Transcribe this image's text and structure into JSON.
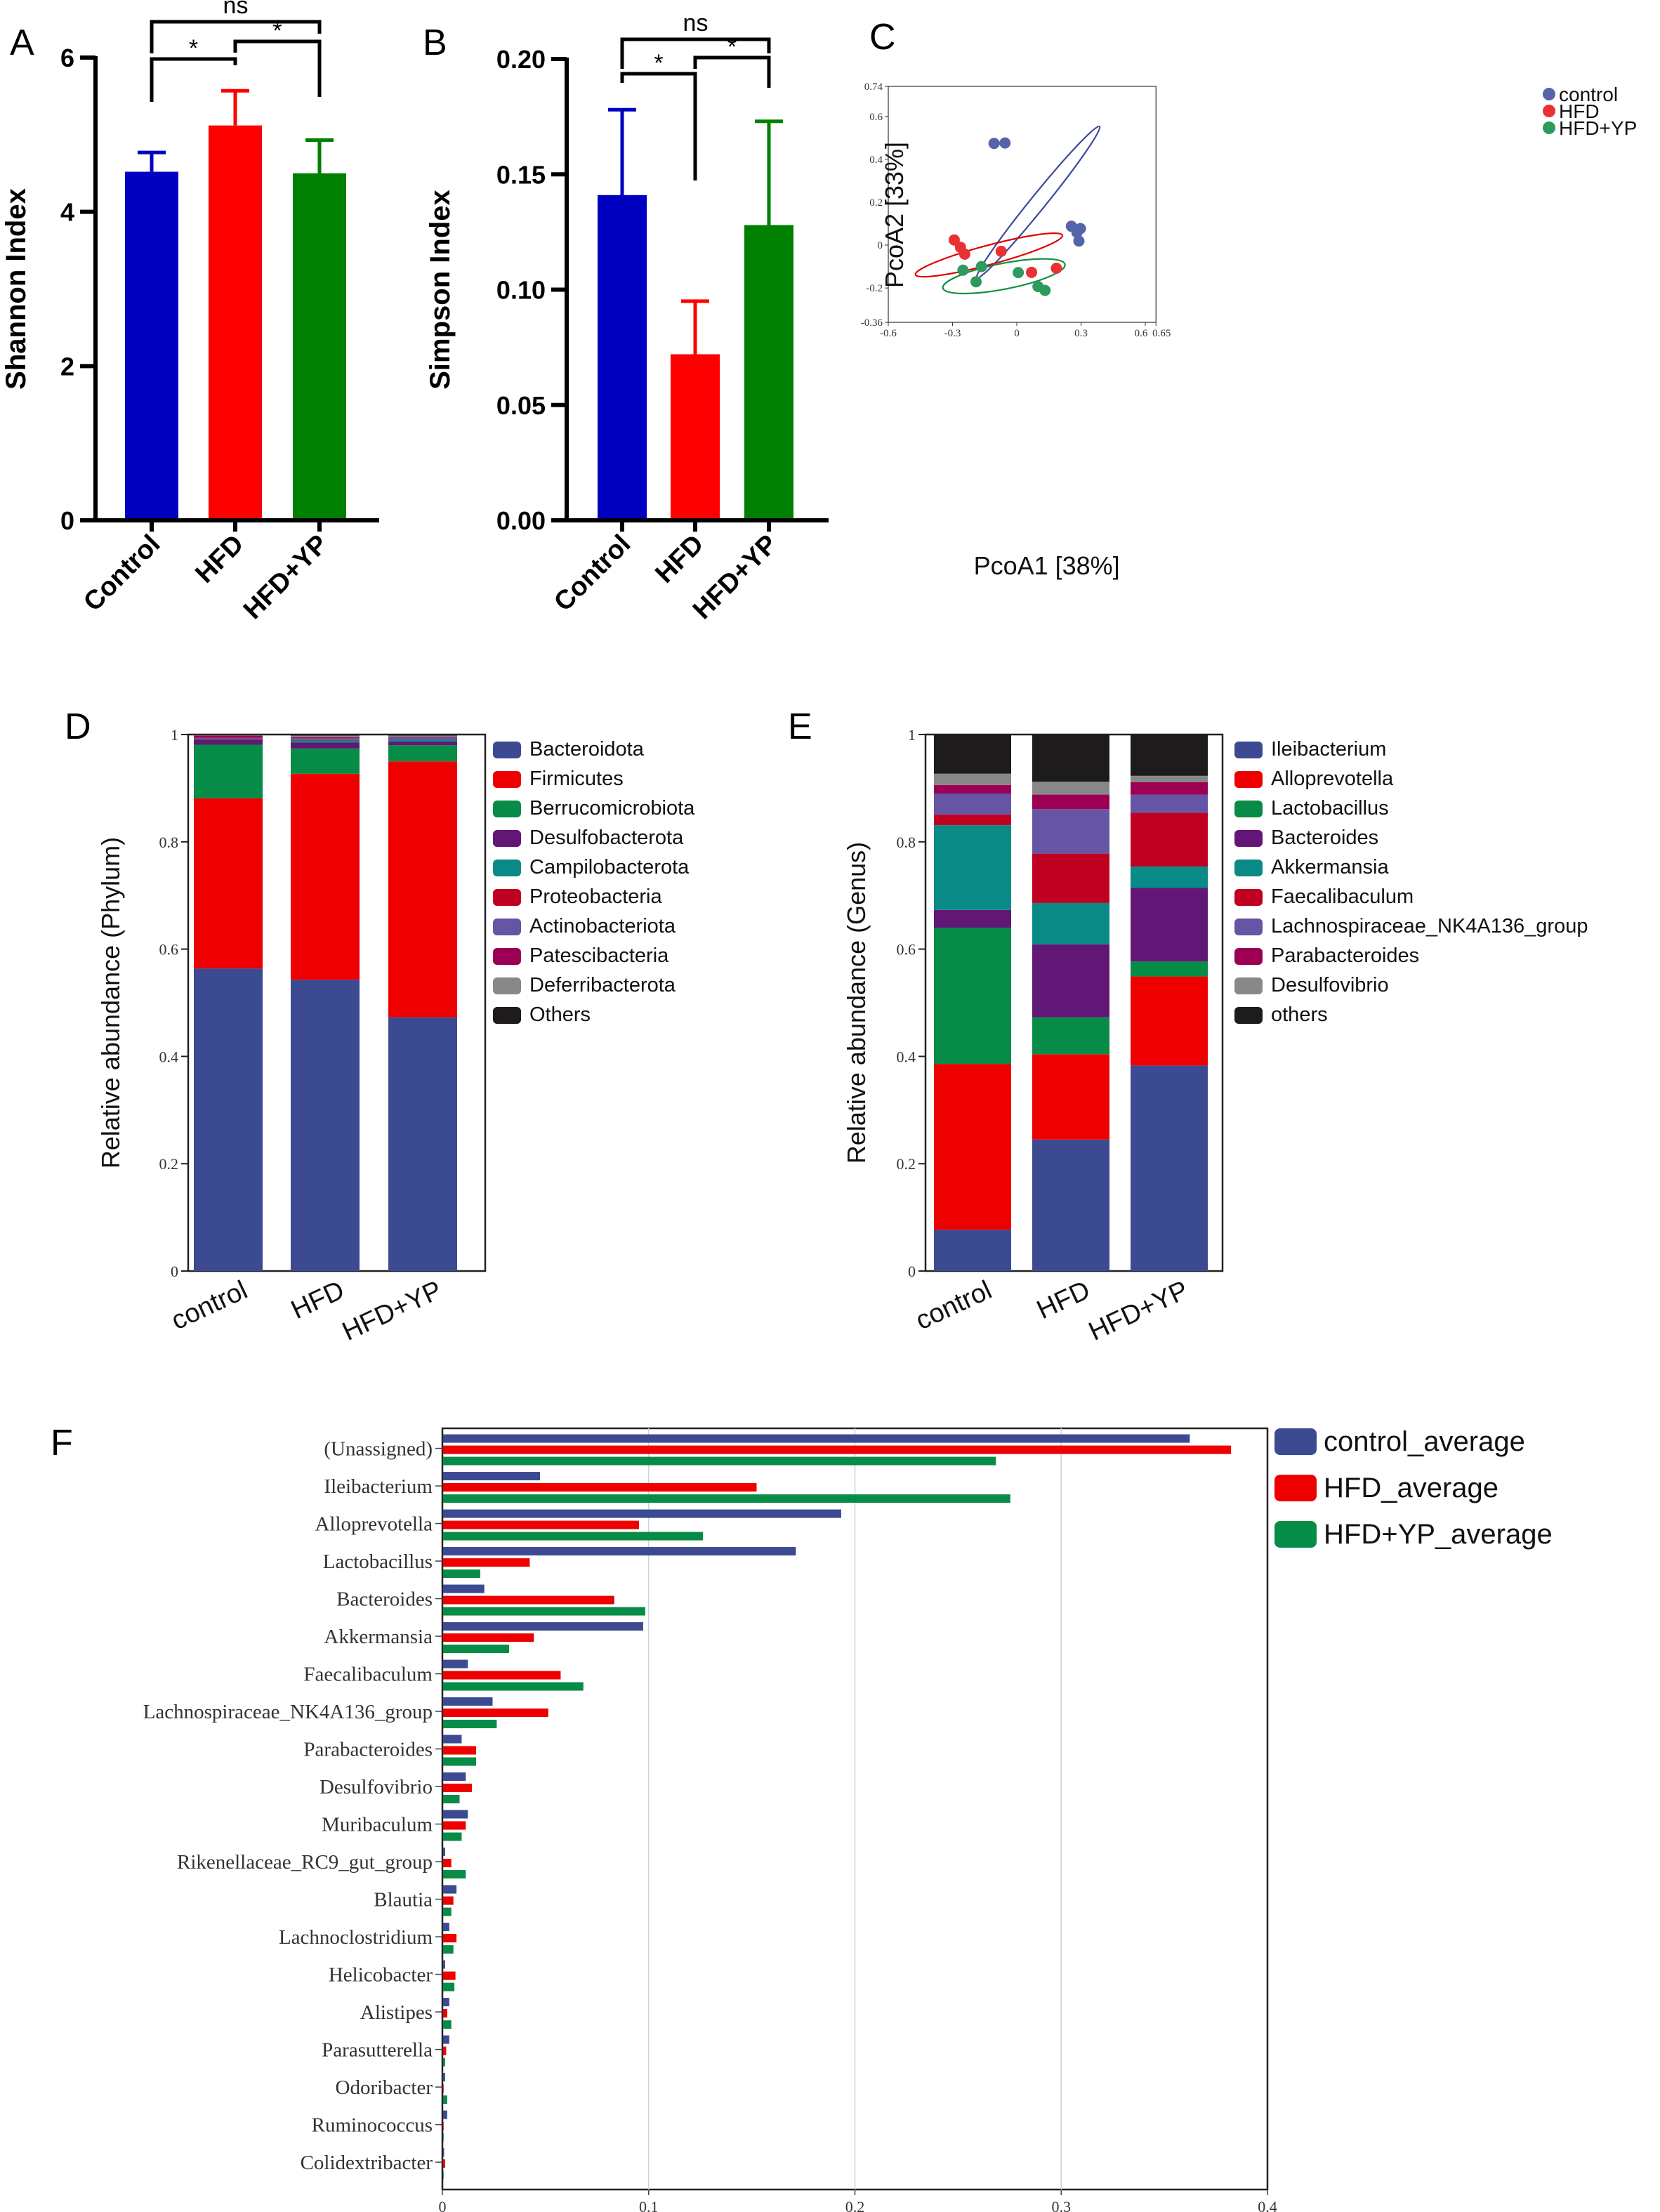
{
  "panels": {
    "A": {
      "letter": "A"
    },
    "B": {
      "letter": "B"
    },
    "C": {
      "letter": "C"
    },
    "D": {
      "letter": "D"
    },
    "E": {
      "letter": "E"
    },
    "F": {
      "letter": "F"
    }
  },
  "colors": {
    "control": "#0000c0",
    "hfd": "#ff0000",
    "hfd_yp": "#008000",
    "pcoa_control": "#5563a8",
    "pcoa_hfd": "#e83232",
    "pcoa_hfd_yp": "#2e9a5e",
    "ellipse_control": "#3b4a9a",
    "ellipse_hfd": "#e00000",
    "ellipse_hfd_yp": "#119040",
    "f_control": "#3c4a92",
    "f_hfd": "#ee0000",
    "f_hfd_yp": "#078c47"
  },
  "chart_data": [
    {
      "id": "A",
      "type": "bar",
      "title": "",
      "xlabel": "",
      "ylabel": "Shannon Index",
      "ylim": [
        0,
        6
      ],
      "yticks": [
        "0",
        "2",
        "4",
        "6"
      ],
      "ytick_values": [
        0,
        2,
        4,
        6
      ],
      "categories": [
        "Control",
        "HFD",
        "HFD+YP"
      ],
      "values": [
        4.52,
        5.12,
        4.5
      ],
      "error_upper": [
        4.77,
        5.57,
        4.93
      ],
      "significance": [
        {
          "from": 0,
          "to": 1,
          "label": "*"
        },
        {
          "from": 1,
          "to": 2,
          "label": "*"
        },
        {
          "from": 0,
          "to": 2,
          "label": "ns"
        }
      ]
    },
    {
      "id": "B",
      "type": "bar",
      "title": "",
      "xlabel": "",
      "ylabel": "Simpson Index",
      "ylim": [
        0,
        0.2
      ],
      "yticks": [
        "0.00",
        "0.05",
        "0.10",
        "0.15",
        "0.20"
      ],
      "ytick_values": [
        0,
        0.05,
        0.1,
        0.15,
        0.2
      ],
      "categories": [
        "Control",
        "HFD",
        "HFD+YP"
      ],
      "values": [
        0.141,
        0.072,
        0.128
      ],
      "error_upper": [
        0.178,
        0.095,
        0.173
      ],
      "significance": [
        {
          "from": 0,
          "to": 1,
          "label": "*"
        },
        {
          "from": 1,
          "to": 2,
          "label": "*"
        },
        {
          "from": 0,
          "to": 2,
          "label": "ns"
        }
      ]
    },
    {
      "id": "C",
      "type": "scatter",
      "title": "",
      "xlabel": "PcoA1 [38%]",
      "ylabel": "PcoA2 [33%]",
      "xlim": [
        -0.6,
        0.65
      ],
      "ylim": [
        -0.36,
        0.74
      ],
      "xticks": [
        "-0.6",
        "-0.3",
        "0",
        "0.3",
        "0.6",
        "0.65"
      ],
      "xtick_values": [
        -0.6,
        -0.3,
        0,
        0.3,
        0.6,
        0.65
      ],
      "yticks": [
        "-0.36",
        "-0.2",
        "0",
        "0.2",
        "0.4",
        "0.6",
        "0.74"
      ],
      "ytick_values": [
        -0.36,
        -0.2,
        0,
        0.2,
        0.4,
        0.6,
        0.74
      ],
      "legend_position": "top-right",
      "series": [
        {
          "name": "control",
          "points": [
            [
              -0.106,
              0.474
            ],
            [
              -0.055,
              0.476
            ],
            [
              0.255,
              0.088
            ],
            [
              0.281,
              0.059
            ],
            [
              0.297,
              0.077
            ],
            [
              0.29,
              0.019
            ]
          ]
        },
        {
          "name": "HFD",
          "points": [
            [
              -0.292,
              0.024
            ],
            [
              -0.263,
              -0.01
            ],
            [
              -0.243,
              -0.042
            ],
            [
              -0.073,
              -0.029
            ],
            [
              0.069,
              -0.127
            ],
            [
              0.185,
              -0.108
            ]
          ]
        },
        {
          "name": "HFD+YP",
          "points": [
            [
              -0.251,
              -0.117
            ],
            [
              -0.165,
              -0.1
            ],
            [
              -0.19,
              -0.171
            ],
            [
              0.007,
              -0.128
            ],
            [
              0.099,
              -0.193
            ],
            [
              0.132,
              -0.211
            ]
          ]
        }
      ],
      "ellipses": [
        {
          "name": "control",
          "cx": 0.1,
          "cy": 0.2,
          "rx": 0.455,
          "ry": 0.035,
          "angle_deg": -51
        },
        {
          "name": "HFD",
          "cx": -0.13,
          "cy": -0.046,
          "rx": 0.355,
          "ry": 0.045,
          "angle_deg": -15
        },
        {
          "name": "HFD+YP",
          "cx": -0.06,
          "cy": -0.145,
          "rx": 0.29,
          "ry": 0.06,
          "angle_deg": -11
        }
      ]
    },
    {
      "id": "D",
      "type": "bar",
      "stacked": true,
      "title": "",
      "xlabel": "",
      "ylabel": "Relative abundance (Phylum)",
      "ylim": [
        0,
        1
      ],
      "yticks": [
        "0",
        "0.2",
        "0.4",
        "0.6",
        "0.8",
        "1"
      ],
      "ytick_values": [
        0,
        0.2,
        0.4,
        0.6,
        0.8,
        1
      ],
      "categories": [
        "control",
        "HFD",
        "HFD+YP"
      ],
      "legend_position": "right",
      "series": [
        {
          "name": "Bacteroidota",
          "color": "#3c4a92",
          "values": [
            0.564,
            0.543,
            0.473
          ]
        },
        {
          "name": "Firmicutes",
          "color": "#ee0000",
          "values": [
            0.317,
            0.384,
            0.477
          ]
        },
        {
          "name": "Berrucomicrobiota",
          "color": "#078c47",
          "values": [
            0.1,
            0.047,
            0.03
          ]
        },
        {
          "name": "Desulfobacterota",
          "color": "#621776",
          "values": [
            0.01,
            0.011,
            0.007
          ]
        },
        {
          "name": "Campilobacterota",
          "color": "#0a8a86",
          "values": [
            0.001,
            0.004,
            0.004
          ]
        },
        {
          "name": "Proteobacteria",
          "color": "#c00020",
          "values": [
            0.001,
            0.001,
            0.001
          ]
        },
        {
          "name": "Actinobacteriota",
          "color": "#6655a5",
          "values": [
            0.001,
            0.003,
            0.003
          ]
        },
        {
          "name": "Patescibacteria",
          "color": "#9c0055",
          "values": [
            0.004,
            0.002,
            0.001
          ]
        },
        {
          "name": "Deferribacterota",
          "color": "#888888",
          "values": [
            0.001,
            0.003,
            0.002
          ]
        },
        {
          "name": "Others",
          "color": "#1d1b1c",
          "values": [
            0.001,
            0.002,
            0.002
          ]
        }
      ]
    },
    {
      "id": "E",
      "type": "bar",
      "stacked": true,
      "title": "",
      "xlabel": "",
      "ylabel": "Relative abundance (Genus)",
      "ylim": [
        0,
        1
      ],
      "yticks": [
        "0",
        "0.2",
        "0.4",
        "0.6",
        "0.8",
        "1"
      ],
      "ytick_values": [
        0,
        0.2,
        0.4,
        0.6,
        0.8,
        1
      ],
      "categories": [
        "control",
        "HFD",
        "HFD+YP"
      ],
      "legend_position": "right",
      "series": [
        {
          "name": "Ileibacterium",
          "color": "#3c4a92",
          "values": [
            0.077,
            0.245,
            0.383
          ]
        },
        {
          "name": "Alloprevotella",
          "color": "#ee0000",
          "values": [
            0.309,
            0.159,
            0.166
          ]
        },
        {
          "name": "Lactobacillus",
          "color": "#078c47",
          "values": [
            0.254,
            0.069,
            0.028
          ]
        },
        {
          "name": "Bacteroides",
          "color": "#621776",
          "values": [
            0.033,
            0.136,
            0.137
          ]
        },
        {
          "name": "Akkermansia",
          "color": "#0a8a86",
          "values": [
            0.158,
            0.077,
            0.04
          ]
        },
        {
          "name": "Faecalibaculum",
          "color": "#c00020",
          "values": [
            0.02,
            0.092,
            0.1
          ]
        },
        {
          "name": "Lachnospiraceae_NK4A136_group",
          "color": "#6655a5",
          "values": [
            0.039,
            0.083,
            0.034
          ]
        },
        {
          "name": "Parabacteroides",
          "color": "#9c0055",
          "values": [
            0.016,
            0.027,
            0.023
          ]
        },
        {
          "name": "Desulfovibrio",
          "color": "#888888",
          "values": [
            0.021,
            0.024,
            0.012
          ]
        },
        {
          "name": "others",
          "color": "#1d1b1c",
          "values": [
            0.073,
            0.088,
            0.077
          ]
        }
      ]
    },
    {
      "id": "F",
      "type": "bar",
      "orientation": "horizontal",
      "title": "",
      "xlabel": "",
      "ylabel": "",
      "xlim": [
        0,
        0.4
      ],
      "xticks": [
        "0",
        "0.1",
        "0.2",
        "0.3",
        "0.4"
      ],
      "xtick_values": [
        0,
        0.1,
        0.2,
        0.3,
        0.4
      ],
      "grid": true,
      "legend_position": "right",
      "categories": [
        "(Unassigned)",
        "Ileibacterium",
        "Alloprevotella",
        "Lactobacillus",
        "Bacteroides",
        "Akkermansia",
        "Faecalibaculum",
        "Lachnospiraceae_NK4A136_group",
        "Parabacteroides",
        "Desulfovibrio",
        "Muribaculum",
        "Rikenellaceae_RC9_gut_group",
        "Blautia",
        "Lachnoclostridium",
        "Helicobacter",
        "Alistipes",
        "Parasutterella",
        "Odoribacter",
        "Ruminococcus",
        "Colidextribacter"
      ],
      "series": [
        {
          "name": "control_average",
          "color": "#3c4a92",
          "values": [
            0.362,
            0.047,
            0.193,
            0.171,
            0.02,
            0.097,
            0.012,
            0.024,
            0.009,
            0.011,
            0.012,
            0.001,
            0.0065,
            0.003,
            0.001,
            0.003,
            0.003,
            0.001,
            0.002,
            0.0005
          ]
        },
        {
          "name": "HFD_average",
          "color": "#ee0000",
          "values": [
            0.382,
            0.152,
            0.095,
            0.042,
            0.083,
            0.044,
            0.057,
            0.051,
            0.016,
            0.014,
            0.011,
            0.004,
            0.005,
            0.0065,
            0.006,
            0.002,
            0.0015,
            0.0002,
            0.0002,
            0.001
          ]
        },
        {
          "name": "HFD+YP_average",
          "color": "#078c47",
          "values": [
            0.268,
            0.275,
            0.126,
            0.018,
            0.098,
            0.032,
            0.068,
            0.026,
            0.016,
            0.008,
            0.009,
            0.011,
            0.004,
            0.005,
            0.0055,
            0.004,
            0.001,
            0.002,
            0.0002,
            0.0002
          ]
        }
      ]
    }
  ]
}
